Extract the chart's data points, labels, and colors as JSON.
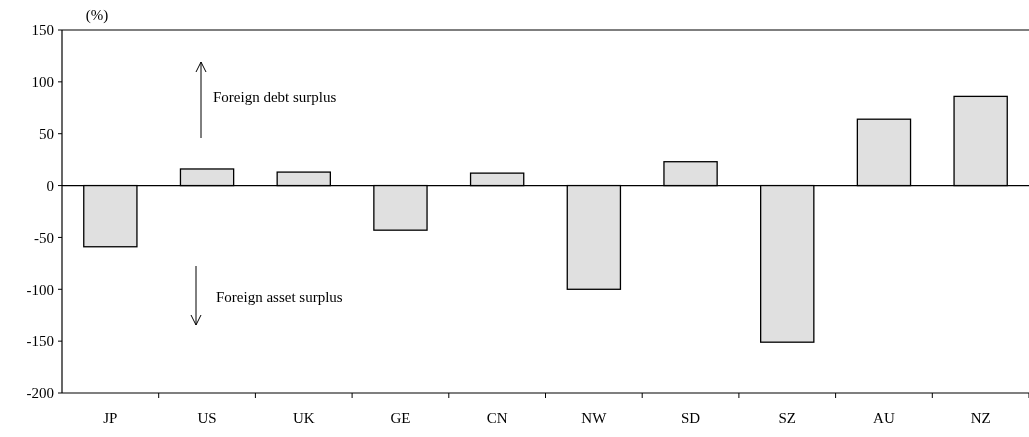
{
  "chart_data": {
    "type": "bar",
    "ylabel": "(%)",
    "categories": [
      "JP",
      "US",
      "UK",
      "GE",
      "CN",
      "NW",
      "SD",
      "SZ",
      "AU",
      "NZ"
    ],
    "values": [
      -59,
      16,
      13,
      -43,
      12,
      -100,
      23,
      -151,
      64,
      86
    ],
    "color": "#e0e0e0",
    "ylim": [
      -200,
      150
    ],
    "yticks": [
      -200,
      -150,
      -100,
      -50,
      0,
      50,
      100,
      150
    ],
    "annotations": [
      "Foreign debt surplus",
      "Foreign asset surplus"
    ]
  }
}
